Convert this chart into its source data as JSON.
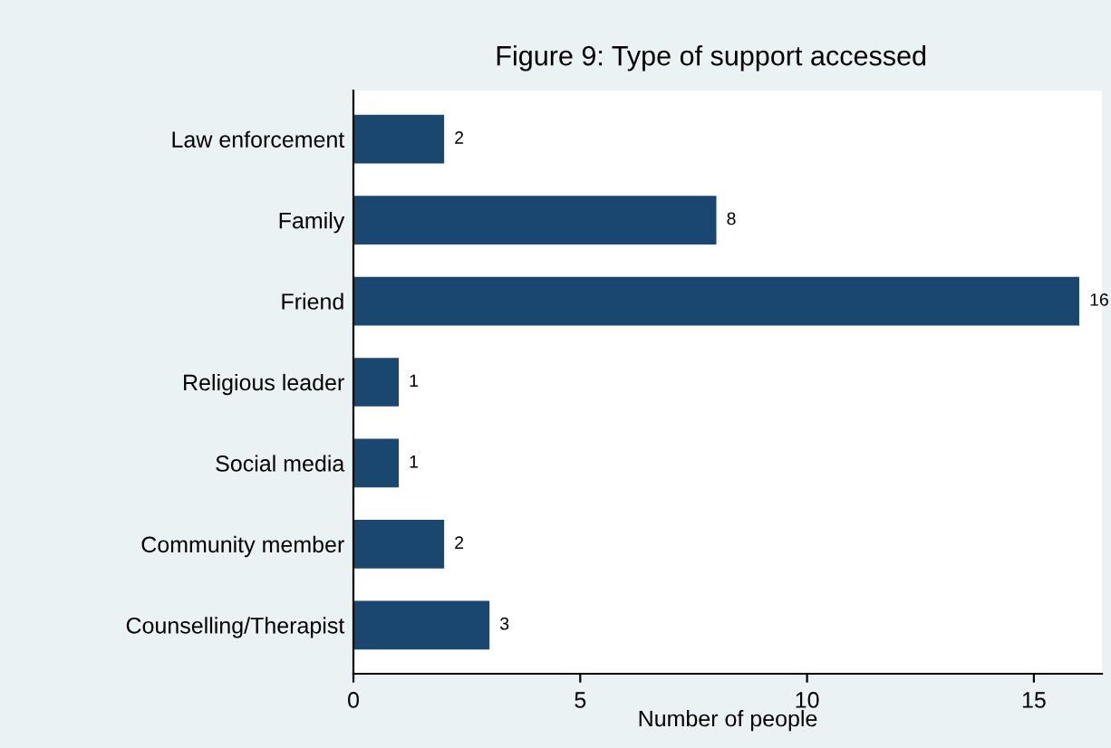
{
  "chart_data": {
    "type": "bar",
    "orientation": "horizontal",
    "title": "Figure 9: Type of support accessed",
    "xlabel": "Number of people",
    "categories": [
      "Law enforcement",
      "Family",
      "Friend",
      "Religious leader",
      "Social media",
      "Community member",
      "Counselling/Therapist"
    ],
    "values": [
      2,
      8,
      16,
      1,
      1,
      2,
      3
    ],
    "color": "#1a476f",
    "xlim": [
      0,
      16.5
    ],
    "xticks": [
      0,
      5,
      10,
      15
    ],
    "data_labels": true,
    "grid": false,
    "legend": false
  }
}
